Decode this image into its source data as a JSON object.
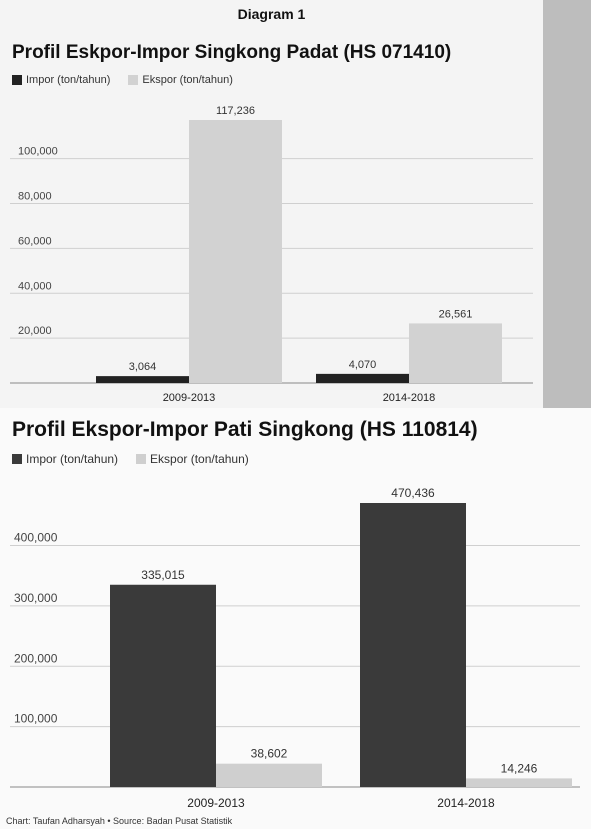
{
  "header": {
    "tag": "Diagram 1"
  },
  "source": "Chart: Taufan Adharsyah • Source: Badan Pusat Statistik",
  "chart_data": [
    {
      "type": "bar",
      "title": "Profil Eskpor-Impor Singkong Padat (HS 071410)",
      "categories": [
        "2009-2013",
        "2014-2018"
      ],
      "series": [
        {
          "name": "Impor (ton/tahun)",
          "color": "#222222",
          "values": [
            3064,
            4070
          ],
          "labels": [
            "3,064",
            "4,070"
          ]
        },
        {
          "name": "Ekspor (ton/tahun)",
          "color": "#d2d2d2",
          "values": [
            117236,
            26561
          ],
          "labels": [
            "117,236",
            "26,561"
          ]
        }
      ],
      "yticks": [
        20000,
        40000,
        60000,
        80000,
        100000
      ],
      "ytick_labels": [
        "20,000",
        "40,000",
        "60,000",
        "80,000",
        "100,000"
      ],
      "ylim": [
        0,
        117236
      ],
      "grid": true,
      "legend": "top-left"
    },
    {
      "type": "bar",
      "title": "Profil Ekspor-Impor Pati Singkong (HS 110814)",
      "categories": [
        "2009-2013",
        "2014-2018"
      ],
      "series": [
        {
          "name": "Impor (ton/tahun)",
          "color": "#3a3a3a",
          "values": [
            335015,
            470436
          ],
          "labels": [
            "335,015",
            "470,436"
          ]
        },
        {
          "name": "Ekspor (ton/tahun)",
          "color": "#cfcfcf",
          "values": [
            38602,
            14246
          ],
          "labels": [
            "38,602",
            "14,246"
          ]
        }
      ],
      "yticks": [
        100000,
        200000,
        300000,
        400000
      ],
      "ytick_labels": [
        "100,000",
        "200,000",
        "300,000",
        "400,000"
      ],
      "ylim": [
        0,
        470436
      ],
      "grid": true,
      "legend": "top-left"
    }
  ]
}
